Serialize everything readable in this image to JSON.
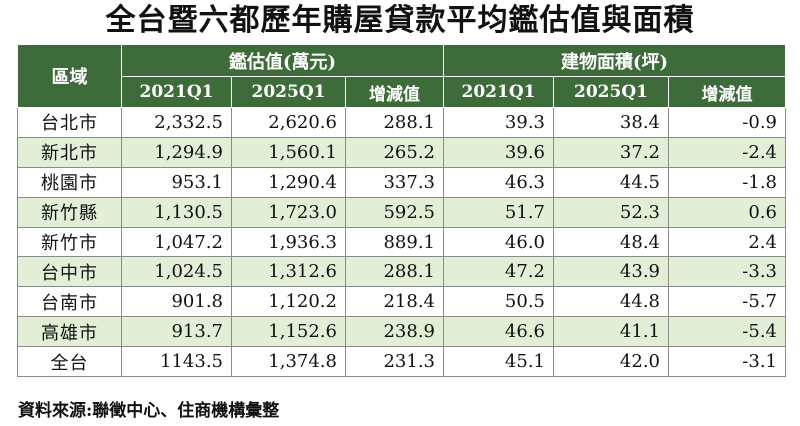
{
  "title": "全台暨六都歷年購屋貸款平均鑑估值與面積",
  "headers": {
    "region": "區域",
    "appraisal_group": "鑑估值(萬元)",
    "area_group": "建物面積(坪)",
    "cols": [
      "2021Q1",
      "2025Q1",
      "增減值",
      "2021Q1",
      "2025Q1",
      "增減值"
    ]
  },
  "rows": [
    {
      "region": "台北市",
      "v": [
        "2,332.5",
        "2,620.6",
        "288.1",
        "39.3",
        "38.4",
        "-0.9"
      ]
    },
    {
      "region": "新北市",
      "v": [
        "1,294.9",
        "1,560.1",
        "265.2",
        "39.6",
        "37.2",
        "-2.4"
      ]
    },
    {
      "region": "桃園市",
      "v": [
        "953.1",
        "1,290.4",
        "337.3",
        "46.3",
        "44.5",
        "-1.8"
      ]
    },
    {
      "region": "新竹縣",
      "v": [
        "1,130.5",
        "1,723.0",
        "592.5",
        "51.7",
        "52.3",
        "0.6"
      ]
    },
    {
      "region": "新竹市",
      "v": [
        "1,047.2",
        "1,936.3",
        "889.1",
        "46.0",
        "48.4",
        "2.4"
      ]
    },
    {
      "region": "台中市",
      "v": [
        "1,024.5",
        "1,312.6",
        "288.1",
        "47.2",
        "43.9",
        "-3.3"
      ]
    },
    {
      "region": "台南市",
      "v": [
        "901.8",
        "1,120.2",
        "218.4",
        "50.5",
        "44.8",
        "-5.7"
      ]
    },
    {
      "region": "高雄市",
      "v": [
        "913.7",
        "1,152.6",
        "238.9",
        "46.6",
        "41.1",
        "-5.4"
      ]
    },
    {
      "region": "全台",
      "v": [
        "1143.5",
        "1,374.8",
        "231.3",
        "45.1",
        "42.0",
        "-3.1"
      ]
    }
  ],
  "source": "資料來源:聯徵中心、住商機構彙整",
  "colors": {
    "header_bg": "#3d6b3a",
    "alt_row_bg": "#e2efd6"
  }
}
